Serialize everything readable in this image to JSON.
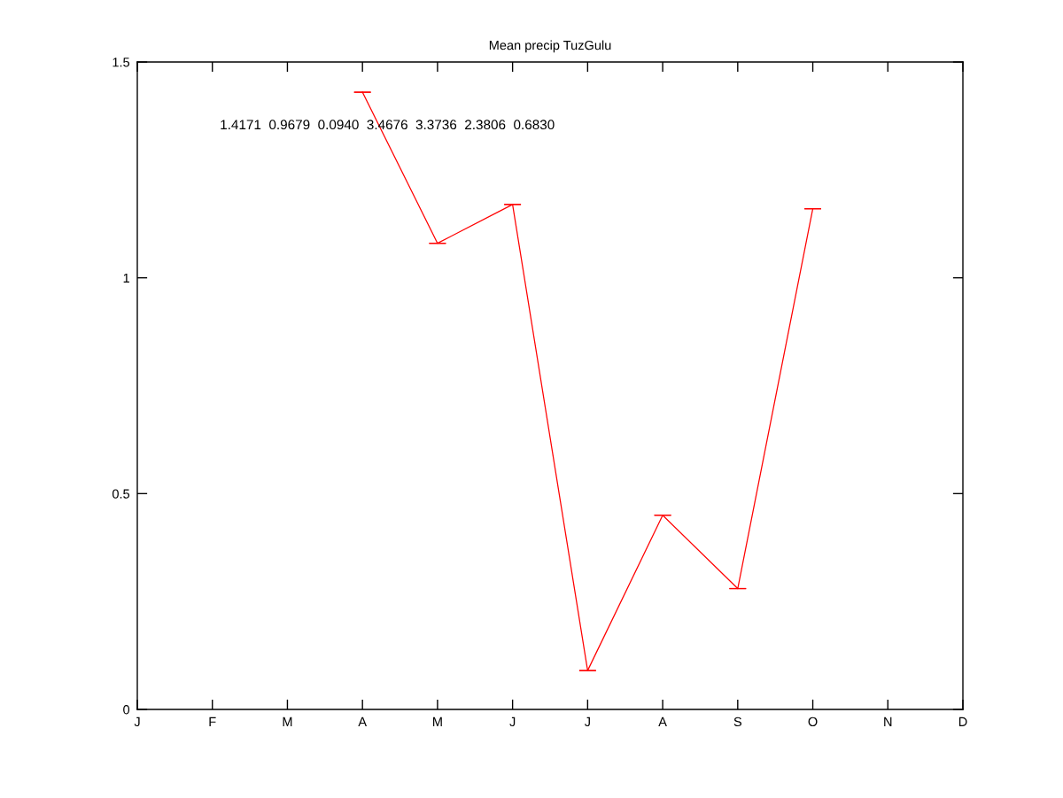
{
  "chart_data": {
    "type": "line",
    "title": "Mean precip TuzGulu",
    "categories": [
      "J",
      "F",
      "M",
      "A",
      "M",
      "J",
      "J",
      "A",
      "S",
      "O",
      "N",
      "D"
    ],
    "series": [
      {
        "color": "#ff0000",
        "values": [
          null,
          null,
          null,
          1.43,
          1.08,
          1.17,
          0.09,
          0.45,
          0.28,
          1.16,
          null,
          null
        ],
        "errors": [
          null,
          null,
          null,
          0,
          0,
          0,
          0,
          0,
          0,
          0,
          null,
          null
        ]
      }
    ],
    "ylim": [
      0,
      1.5
    ],
    "yticks": [
      0,
      0.5,
      1,
      1.5
    ],
    "annotations": [
      "1.4171  0.9679  0.0940  3.4676  3.3736  2.3806  0.6830"
    ],
    "grid": false,
    "marker": "none",
    "line_style": "solid"
  }
}
